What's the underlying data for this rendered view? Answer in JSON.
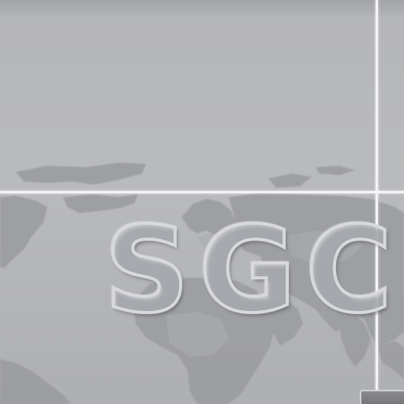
{
  "logo": {
    "text": "SGC"
  },
  "colors": {
    "background": "#b9babd",
    "land": "#9c9da1",
    "grid_line": "#f4f4f6",
    "logo_stroke": "#d8d9dc"
  },
  "icons": {
    "world_map": "world-map-graphic",
    "corner_widget": "panel-tab"
  }
}
